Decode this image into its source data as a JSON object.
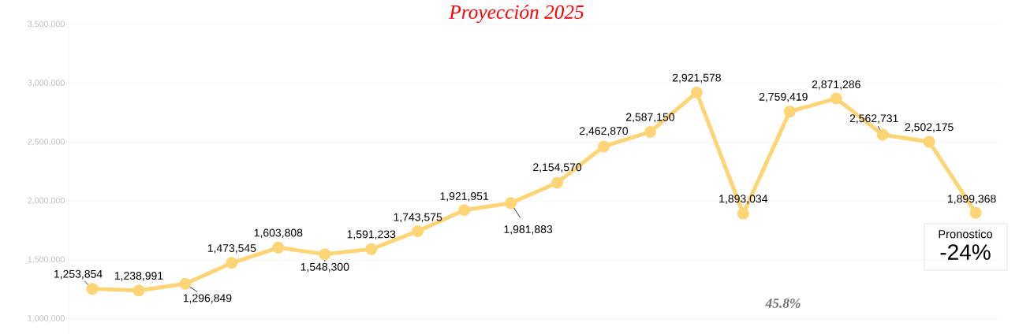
{
  "chart_data": {
    "type": "line",
    "title": "Proyección 2025",
    "categories": [
      null,
      null,
      null,
      null,
      null,
      null,
      null,
      null,
      null,
      null,
      null,
      null,
      null,
      null,
      null,
      null,
      null,
      null,
      null,
      null
    ],
    "series": [
      {
        "color": "#fdd576",
        "values": [
          1253854,
          1238991,
          1296849,
          1473545,
          1603808,
          1548300,
          1591233,
          1743575,
          1921951,
          1981883,
          2154570,
          2462870,
          2587150,
          2921578,
          1893034,
          2759419,
          2871286,
          2562731,
          2502175,
          1899368
        ],
        "value_labels": [
          "1,253,854",
          "1,238,991",
          "1,296,849",
          "1,473,545",
          "1,603,808",
          "1,548,300",
          "1,591,233",
          "1,743,575",
          "1,921,951",
          "1,981,883",
          "2,154,570",
          "2,462,870",
          "2,587,150",
          "2,921,578",
          "1,893,034",
          "2,759,419",
          "2,871,286",
          "2,562,731",
          "2,502,175",
          "1,899,368"
        ]
      }
    ],
    "ylim": [
      870000,
      3500000
    ],
    "yticks": [
      {
        "value": 1000000,
        "label": "1,000,000"
      },
      {
        "value": 1500000,
        "label": "1,500,000"
      },
      {
        "value": 2000000,
        "label": "2,000,000"
      },
      {
        "value": 2500000,
        "label": "2,500,000"
      },
      {
        "value": 3000000,
        "label": "3,000,000"
      },
      {
        "value": 3500000,
        "label": "3,500,000"
      }
    ],
    "grid": "y",
    "marker": "circle",
    "line_style": "solid",
    "annotations": [
      "Pronostico",
      "-24%",
      "45.8%"
    ]
  }
}
